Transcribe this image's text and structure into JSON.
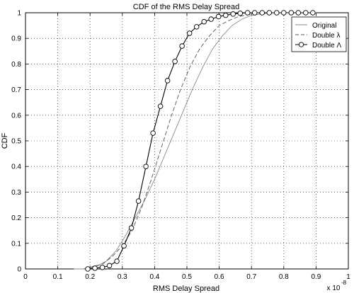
{
  "chart_data": {
    "type": "line",
    "title": "CDF of the RMS Delay Spread",
    "xlabel": "RMS Delay Spread",
    "ylabel": "CDF",
    "x_multiplier": "x 10",
    "x_multiplier_exp": "-8",
    "xlim": [
      0,
      1
    ],
    "ylim": [
      0,
      1
    ],
    "xticks": [
      "0",
      "0.1",
      "0.2",
      "0.3",
      "0.4",
      "0.5",
      "0.6",
      "0.7",
      "0.8",
      "0.9",
      "1"
    ],
    "yticks": [
      "0",
      "0.1",
      "0.2",
      "0.3",
      "0.4",
      "0.5",
      "0.6",
      "0.7",
      "0.8",
      "0.9",
      "1"
    ],
    "grid": true,
    "legend_position": "top-right",
    "series": [
      {
        "name": "Original",
        "style": "solid-thin",
        "color": "#8a8a8a",
        "x": [
          0.15,
          0.19,
          0.22,
          0.25,
          0.28,
          0.31,
          0.34,
          0.37,
          0.4,
          0.43,
          0.46,
          0.49,
          0.52,
          0.55,
          0.58,
          0.61,
          0.64,
          0.67,
          0.7,
          0.73,
          0.76,
          0.8,
          0.85,
          0.9
        ],
        "y": [
          0.0,
          0.0,
          0.01,
          0.03,
          0.07,
          0.13,
          0.2,
          0.27,
          0.35,
          0.44,
          0.53,
          0.62,
          0.71,
          0.79,
          0.86,
          0.91,
          0.95,
          0.975,
          0.99,
          0.995,
          1.0,
          1.0,
          1.0,
          1.0
        ]
      },
      {
        "name": "Double λ",
        "style": "dashed",
        "color": "#555555",
        "x": [
          0.18,
          0.21,
          0.24,
          0.27,
          0.3,
          0.33,
          0.36,
          0.39,
          0.42,
          0.45,
          0.48,
          0.51,
          0.54,
          0.57,
          0.6,
          0.63,
          0.66,
          0.7,
          0.75,
          0.8,
          0.9
        ],
        "y": [
          0.0,
          0.01,
          0.02,
          0.05,
          0.09,
          0.15,
          0.24,
          0.35,
          0.47,
          0.59,
          0.7,
          0.79,
          0.86,
          0.91,
          0.95,
          0.97,
          0.985,
          0.995,
          1.0,
          1.0,
          1.0
        ]
      },
      {
        "name": "Double Λ",
        "style": "solid-circle",
        "color": "#000000",
        "x": [
          0.193,
          0.215,
          0.238,
          0.26,
          0.283,
          0.305,
          0.328,
          0.35,
          0.373,
          0.395,
          0.418,
          0.44,
          0.463,
          0.485,
          0.508,
          0.53,
          0.553,
          0.575,
          0.598,
          0.62,
          0.643,
          0.665,
          0.688,
          0.71,
          0.733,
          0.755,
          0.778,
          0.8,
          0.823,
          0.845,
          0.868,
          0.89
        ],
        "y": [
          0.0,
          0.003,
          0.006,
          0.013,
          0.03,
          0.09,
          0.16,
          0.265,
          0.4,
          0.53,
          0.635,
          0.735,
          0.81,
          0.87,
          0.92,
          0.945,
          0.965,
          0.975,
          0.985,
          0.99,
          0.995,
          0.998,
          1.0,
          1.0,
          1.0,
          1.0,
          1.0,
          1.0,
          1.0,
          1.0,
          1.0,
          1.0
        ]
      }
    ]
  }
}
